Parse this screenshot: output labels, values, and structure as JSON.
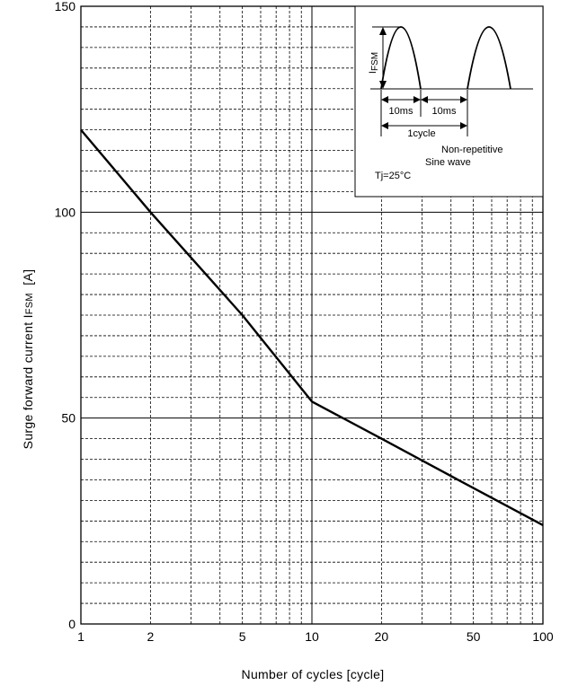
{
  "chart_data": {
    "type": "line",
    "title": "",
    "xlabel": "Number of cycles  [cycle]",
    "ylabel_prefix": "Surge forward  current  I",
    "ylabel_sub": "FSM",
    "ylabel_unit": "[A]",
    "x_scale": "log",
    "xlim": [
      1,
      100
    ],
    "ylim": [
      0,
      150
    ],
    "grid": true,
    "x_tick_labels": [
      "1",
      "2",
      "5",
      "10",
      "20",
      "50",
      "100"
    ],
    "y_tick_labels": [
      "0",
      "50",
      "100",
      "150"
    ],
    "series": [
      {
        "x": [
          1,
          2,
          5,
          10,
          20,
          50,
          100
        ],
        "y": [
          120,
          100,
          75,
          54,
          45,
          33,
          24
        ]
      }
    ],
    "inset": {
      "ifsm_main": "I",
      "ifsm_sub": "FSM",
      "half_period_1": "10ms",
      "half_period_2": "10ms",
      "cycle_label": "1cycle",
      "note_1": "Non-repetitive",
      "note_2": "Sine wave",
      "tj": "Tj=25°C"
    }
  }
}
